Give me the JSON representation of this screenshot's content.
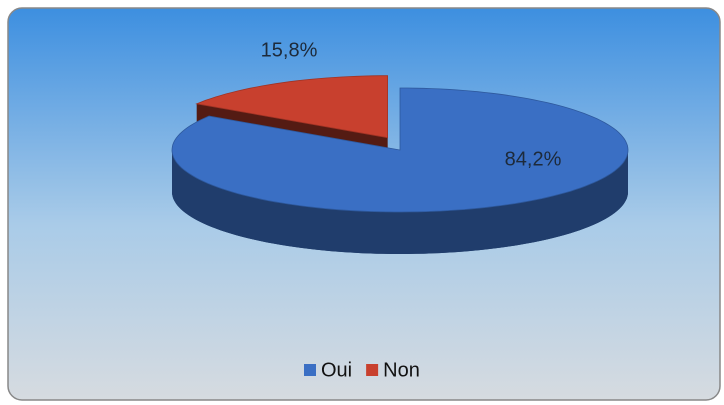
{
  "chart_data": {
    "type": "pie",
    "categories": [
      "Oui",
      "Non"
    ],
    "values": [
      84.2,
      15.8
    ],
    "value_labels": [
      "84,2%",
      "15,8%"
    ],
    "colors": [
      "#3a6fc4",
      "#c8402e"
    ],
    "legend": "bottom"
  }
}
